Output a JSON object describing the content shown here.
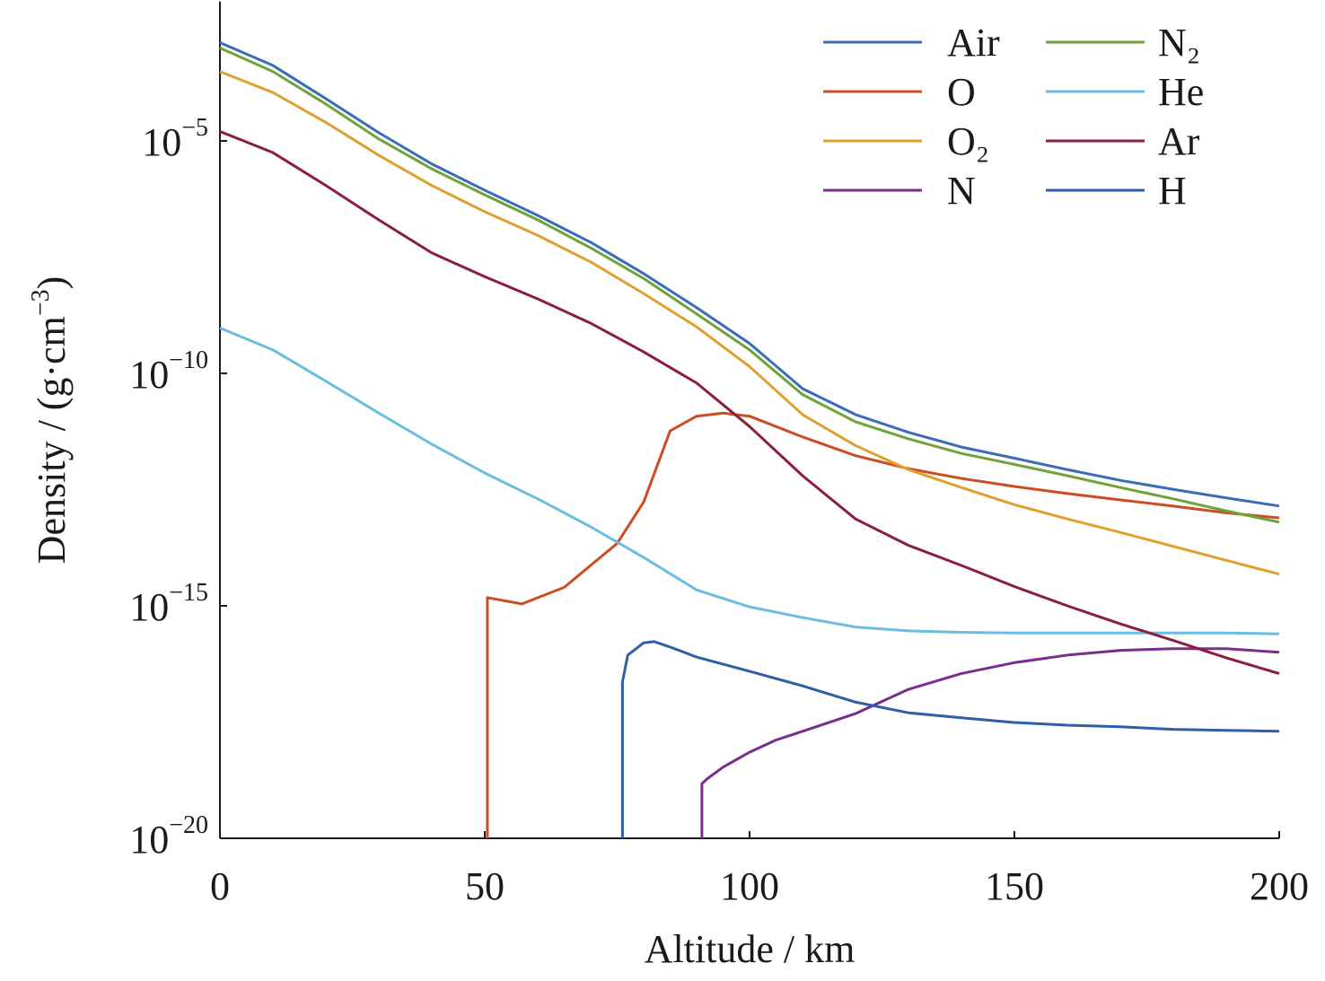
{
  "chart_data": {
    "type": "line",
    "xlabel": "Altitude / km",
    "ylabel": [
      "Density / (g·cm",
      "−3",
      ")"
    ],
    "xlim": [
      0,
      200
    ],
    "xticks": [
      0,
      50,
      100,
      150,
      200
    ],
    "ylim": [
      1e-20,
      0.01
    ],
    "yscale": "log",
    "yticks": [
      {
        "value": 1e-20,
        "label": [
          "10",
          "−20"
        ]
      },
      {
        "value": 1e-15,
        "label": [
          "10",
          "−15"
        ]
      },
      {
        "value": 1e-10,
        "label": [
          "10",
          "−10"
        ]
      },
      {
        "value": 1e-05,
        "label": [
          "10",
          "−5"
        ]
      }
    ],
    "legend": "upper right",
    "series": [
      {
        "name": "Air",
        "color": "#3a6db5",
        "x": [
          0,
          10,
          20,
          30,
          40,
          50,
          60,
          70,
          80,
          90,
          100,
          110,
          120,
          130,
          140,
          150,
          160,
          170,
          180,
          190,
          200
        ],
        "values": [
          0.0013,
          0.00042,
          8.1e-05,
          1.5e-05,
          3.2e-06,
          8.7e-07,
          2.5e-07,
          6.6e-08,
          1.4e-08,
          2.6e-09,
          4.4e-10,
          4.7e-11,
          1.3e-11,
          5.4e-12,
          2.6e-12,
          1.5e-12,
          8.5e-13,
          5e-13,
          3.2e-13,
          2.1e-13,
          1.4e-13
        ]
      },
      {
        "name": "O",
        "color": "#cc4c24",
        "x": [
          50.5,
          50.5,
          52,
          57,
          65,
          75,
          80,
          85,
          90,
          95,
          100,
          110,
          120,
          130,
          140,
          150,
          160,
          170,
          180,
          190,
          200
        ],
        "values": [
          1e-20,
          1.5e-15,
          1.4e-15,
          1.1e-15,
          2.5e-15,
          2.2e-14,
          1.7e-13,
          5.8e-12,
          1.2e-11,
          1.4e-11,
          1.2e-11,
          4.3e-12,
          1.7e-12,
          8.9e-13,
          5.5e-13,
          3.7e-13,
          2.6e-13,
          1.9e-13,
          1.4e-13,
          1e-13,
          7.8e-14
        ]
      },
      {
        "name": "O₂",
        "color": "#e0a030",
        "x": [
          0,
          10,
          20,
          30,
          40,
          50,
          60,
          70,
          80,
          90,
          100,
          110,
          120,
          130,
          140,
          150,
          160,
          170,
          180,
          190,
          200
        ],
        "values": [
          0.00031,
          0.00011,
          2.5e-05,
          4.9e-06,
          1.1e-06,
          3e-07,
          9.3e-08,
          2.5e-08,
          5.2e-09,
          1e-09,
          1.4e-10,
          1.3e-11,
          2.8e-12,
          8.5e-13,
          3.5e-13,
          1.5e-13,
          7.4e-14,
          3.8e-14,
          1.9e-14,
          9.5e-15,
          4.8e-15
        ]
      },
      {
        "name": "N",
        "color": "#7b2d8e",
        "x": [
          91,
          91,
          92,
          95,
          100,
          105,
          110,
          120,
          130,
          140,
          150,
          160,
          170,
          180,
          190,
          200
        ],
        "values": [
          1e-20,
          1.5e-19,
          1.9e-19,
          3.4e-19,
          7.1e-19,
          1.3e-18,
          2e-18,
          4.8e-18,
          1.6e-17,
          3.5e-17,
          6e-17,
          8.7e-17,
          1.1e-16,
          1.2e-16,
          1.2e-16,
          1e-16
        ]
      },
      {
        "name": "N₂",
        "color": "#6fa33a",
        "x": [
          0,
          10,
          20,
          30,
          40,
          50,
          60,
          70,
          80,
          90,
          100,
          110,
          120,
          130,
          140,
          150,
          160,
          170,
          180,
          190,
          200
        ],
        "values": [
          0.001,
          0.00031,
          6.2e-05,
          1.1e-05,
          2.5e-06,
          6.9e-07,
          2e-07,
          5e-08,
          1.1e-08,
          1.9e-09,
          3.2e-10,
          3.5e-11,
          9.1e-12,
          3.9e-12,
          1.9e-12,
          1.1e-12,
          6.3e-13,
          3.5e-13,
          2e-13,
          1.1e-13,
          6.3e-14
        ]
      },
      {
        "name": "He",
        "color": "#6bbde0",
        "x": [
          0,
          10,
          20,
          30,
          40,
          50,
          60,
          70,
          80,
          90,
          100,
          110,
          120,
          130,
          140,
          150,
          160,
          170,
          180,
          190,
          200
        ],
        "values": [
          9.5e-10,
          3.2e-10,
          6.8e-11,
          1.4e-11,
          3e-12,
          7.2e-13,
          2e-13,
          5e-14,
          1.1e-14,
          2.2e-15,
          9.5e-16,
          5.6e-16,
          3.5e-16,
          2.9e-16,
          2.7e-16,
          2.6e-16,
          2.6e-16,
          2.6e-16,
          2.6e-16,
          2.6e-16,
          2.5e-16
        ]
      },
      {
        "name": "Ar",
        "color": "#8b1e3f",
        "x": [
          0,
          10,
          20,
          30,
          40,
          50,
          60,
          70,
          80,
          90,
          100,
          110,
          120,
          130,
          140,
          150,
          160,
          170,
          180,
          190,
          200
        ],
        "values": [
          1.6e-05,
          5.6e-06,
          1.1e-06,
          2e-07,
          3.9e-08,
          1.2e-08,
          4e-09,
          1.2e-09,
          2.9e-10,
          6.2e-11,
          7.2e-12,
          6.3e-13,
          7.4e-14,
          2e-14,
          7.4e-15,
          2.6e-15,
          1e-15,
          4.1e-16,
          1.8e-16,
          7.6e-17,
          3.5e-17
        ]
      },
      {
        "name": "H",
        "color": "#2f5fa8",
        "x": [
          76,
          76,
          77,
          80,
          82,
          85,
          90,
          100,
          110,
          120,
          130,
          140,
          150,
          160,
          170,
          180,
          190,
          200
        ],
        "values": [
          1e-20,
          2.3e-17,
          8.7e-17,
          1.6e-16,
          1.7e-16,
          1.3e-16,
          7.9e-17,
          3.9e-17,
          1.9e-17,
          8.5e-18,
          5e-18,
          3.9e-18,
          3.1e-18,
          2.7e-18,
          2.5e-18,
          2.2e-18,
          2.1e-18,
          2e-18
        ]
      }
    ]
  }
}
